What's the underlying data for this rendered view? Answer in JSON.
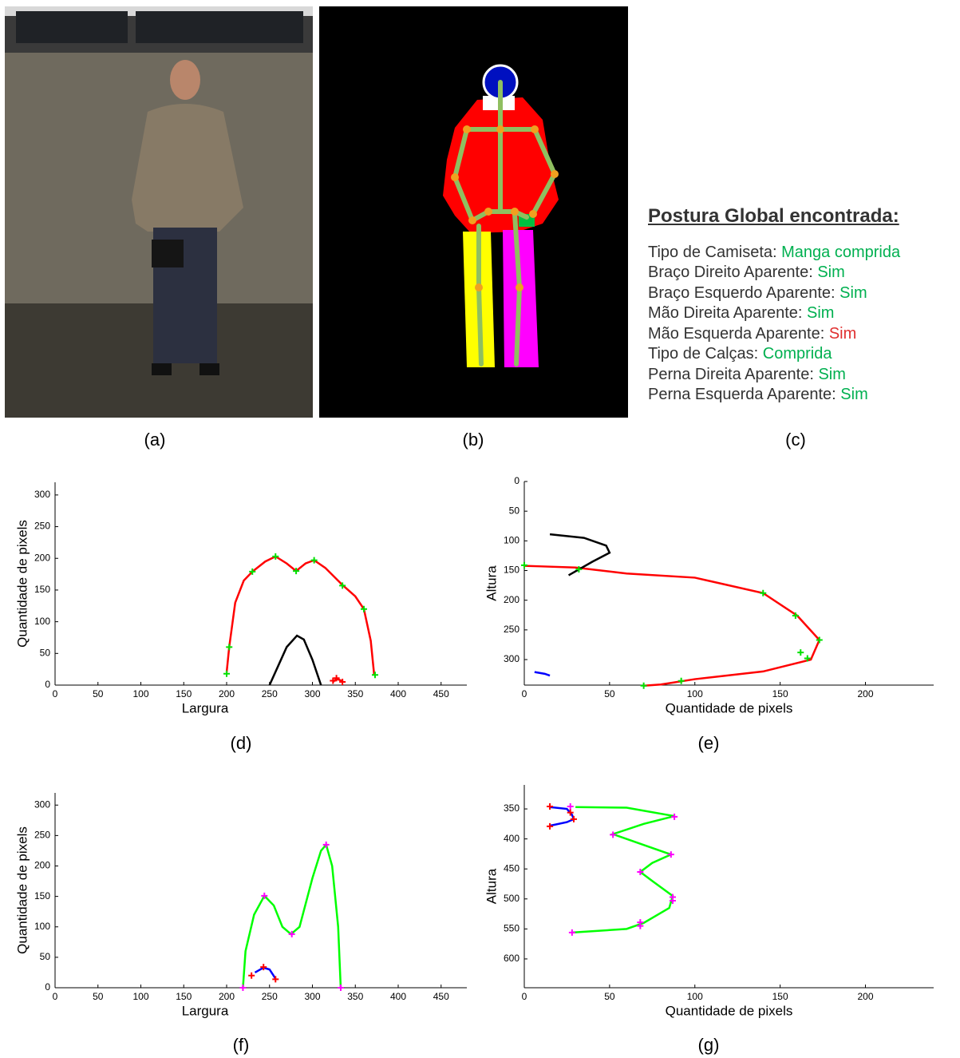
{
  "captions": [
    "(a)",
    "(b)",
    "(c)",
    "(d)",
    "(e)",
    "(f)",
    "(g)"
  ],
  "posture": {
    "title": "Postura Global encontrada:",
    "items": [
      {
        "label": "Tipo de Camiseta:",
        "value": "Manga comprida",
        "color": "#00b050"
      },
      {
        "label": "Braço Direito Aparente:",
        "value": "Sim",
        "color": "#00b050"
      },
      {
        "label": "Braço Esquerdo Aparente:",
        "value": "Sim",
        "color": "#00b050"
      },
      {
        "label": "Mão Direita Aparente:",
        "value": "Sim",
        "color": "#00b050"
      },
      {
        "label": "Mão Esquerda Aparente:",
        "value": "Sim",
        "color": "#e03030"
      },
      {
        "label": "Tipo de Calças:",
        "value": "Comprida",
        "color": "#00b050"
      },
      {
        "label": "Perna Direita Aparente:",
        "value": "Sim",
        "color": "#00b050"
      },
      {
        "label": "Perna Esquerda Aparente:",
        "value": "Sim",
        "color": "#00b050"
      }
    ]
  },
  "chart_data": [
    {
      "type": "line",
      "xlabel": "Largura",
      "ylabel": "Quantidade de pixels",
      "xlim": [
        0,
        480
      ],
      "ylim": [
        0,
        320
      ],
      "yreverse": false,
      "xticks": [
        0,
        50,
        100,
        150,
        200,
        250,
        300,
        350,
        400,
        450
      ],
      "yticks": [
        0,
        50,
        100,
        150,
        200,
        250,
        300
      ],
      "series": [
        {
          "style": "line",
          "color": "#ff0000",
          "x": [
            200,
            203,
            210,
            220,
            230,
            245,
            257,
            270,
            281,
            292,
            302,
            315,
            335,
            350,
            360,
            368,
            372
          ],
          "values": [
            20,
            60,
            130,
            165,
            179,
            195,
            203,
            192,
            180,
            192,
            197,
            185,
            158,
            140,
            120,
            70,
            16
          ]
        },
        {
          "style": "line",
          "color": "#000000",
          "x": [
            250,
            260,
            270,
            282,
            290,
            300,
            310
          ],
          "values": [
            0,
            30,
            60,
            78,
            72,
            40,
            0
          ]
        },
        {
          "style": "line",
          "color": "#ff0000",
          "x": [
            324,
            328,
            332,
            336
          ],
          "values": [
            5,
            10,
            8,
            5
          ]
        },
        {
          "style": "marker",
          "color": "#00e000",
          "x": [
            200,
            203,
            230,
            257,
            281,
            302,
            335,
            360,
            373
          ],
          "values": [
            18,
            60,
            179,
            203,
            180,
            197,
            157,
            120,
            16
          ]
        },
        {
          "style": "marker",
          "color": "#ff0000",
          "x": [
            324,
            328,
            335
          ],
          "values": [
            7,
            11,
            5
          ]
        }
      ]
    },
    {
      "type": "line",
      "xlabel": "Quantidade de pixels",
      "ylabel": "Altura",
      "xlim": [
        0,
        240
      ],
      "ylim": [
        0,
        343
      ],
      "yreverse": true,
      "xticks": [
        0,
        50,
        100,
        150,
        200
      ],
      "yticks": [
        0,
        50,
        100,
        150,
        200,
        250,
        300
      ],
      "series": [
        {
          "style": "line",
          "color": "#ff0000",
          "x": [
            0,
            10,
            30,
            60,
            100,
            140,
            160,
            173,
            168,
            140,
            100,
            80,
            70
          ],
          "values": [
            142,
            143,
            145,
            155,
            162,
            188,
            226,
            267,
            300,
            320,
            333,
            342,
            344
          ]
        },
        {
          "style": "line",
          "color": "#000000",
          "x": [
            15,
            35,
            48,
            50,
            40,
            26
          ],
          "values": [
            89,
            95,
            108,
            120,
            135,
            158
          ]
        },
        {
          "style": "line",
          "color": "#0000ff",
          "x": [
            6,
            12,
            15
          ],
          "values": [
            321,
            324,
            327
          ]
        },
        {
          "style": "marker",
          "color": "#00e000",
          "x": [
            0,
            32,
            140,
            159,
            173,
            162,
            166,
            92,
            70
          ],
          "values": [
            141,
            148,
            188,
            226,
            267,
            288,
            298,
            336,
            344
          ]
        }
      ]
    },
    {
      "type": "line",
      "xlabel": "Largura",
      "ylabel": "Quantidade de pixels",
      "xlim": [
        0,
        480
      ],
      "ylim": [
        0,
        320
      ],
      "yreverse": false,
      "xticks": [
        0,
        50,
        100,
        150,
        200,
        250,
        300,
        350,
        400,
        450
      ],
      "yticks": [
        0,
        50,
        100,
        150,
        200,
        250,
        300
      ],
      "series": [
        {
          "style": "line",
          "color": "#00ff00",
          "x": [
            219,
            222,
            232,
            244,
            255,
            265,
            275,
            285,
            300,
            310,
            316,
            323,
            330,
            333
          ],
          "values": [
            0,
            60,
            120,
            151,
            135,
            100,
            88,
            100,
            180,
            225,
            235,
            200,
            100,
            0
          ]
        },
        {
          "style": "line",
          "color": "#0000ff",
          "x": [
            233,
            243,
            250,
            257
          ],
          "values": [
            25,
            33,
            30,
            15
          ]
        },
        {
          "style": "marker",
          "color": "#ff00ff",
          "x": [
            219,
            244,
            276,
            316,
            333
          ],
          "values": [
            0,
            151,
            88,
            235,
            0
          ]
        },
        {
          "style": "marker",
          "color": "#ff0000",
          "x": [
            229,
            243,
            257
          ],
          "values": [
            20,
            34,
            14
          ]
        }
      ]
    },
    {
      "type": "line",
      "xlabel": "Quantidade de pixels",
      "ylabel": "Altura",
      "xlim": [
        0,
        240
      ],
      "ylim": [
        310,
        648
      ],
      "yreverse": true,
      "xticks": [
        0,
        50,
        100,
        150,
        200
      ],
      "yticks": [
        350,
        400,
        450,
        500,
        550,
        600
      ],
      "series": [
        {
          "style": "line",
          "color": "#00ff00",
          "x": [
            30,
            60,
            88,
            70,
            52,
            70,
            86,
            75,
            68,
            75,
            87,
            85,
            70,
            60,
            28
          ],
          "values": [
            347,
            348,
            362,
            375,
            392,
            410,
            426,
            440,
            455,
            470,
            495,
            515,
            540,
            550,
            556
          ]
        },
        {
          "style": "line",
          "color": "#0000ff",
          "x": [
            15,
            25,
            28,
            29,
            25,
            15
          ],
          "values": [
            347,
            350,
            360,
            367,
            372,
            378
          ]
        },
        {
          "style": "marker",
          "color": "#ff00ff",
          "x": [
            27,
            88,
            52,
            86,
            68,
            87,
            87,
            68,
            68,
            28
          ],
          "values": [
            346,
            363,
            393,
            426,
            455,
            497,
            503,
            539,
            545,
            556
          ]
        },
        {
          "style": "marker",
          "color": "#ff0000",
          "x": [
            15,
            27,
            29,
            15
          ],
          "values": [
            346,
            356,
            367,
            379
          ]
        }
      ]
    }
  ]
}
